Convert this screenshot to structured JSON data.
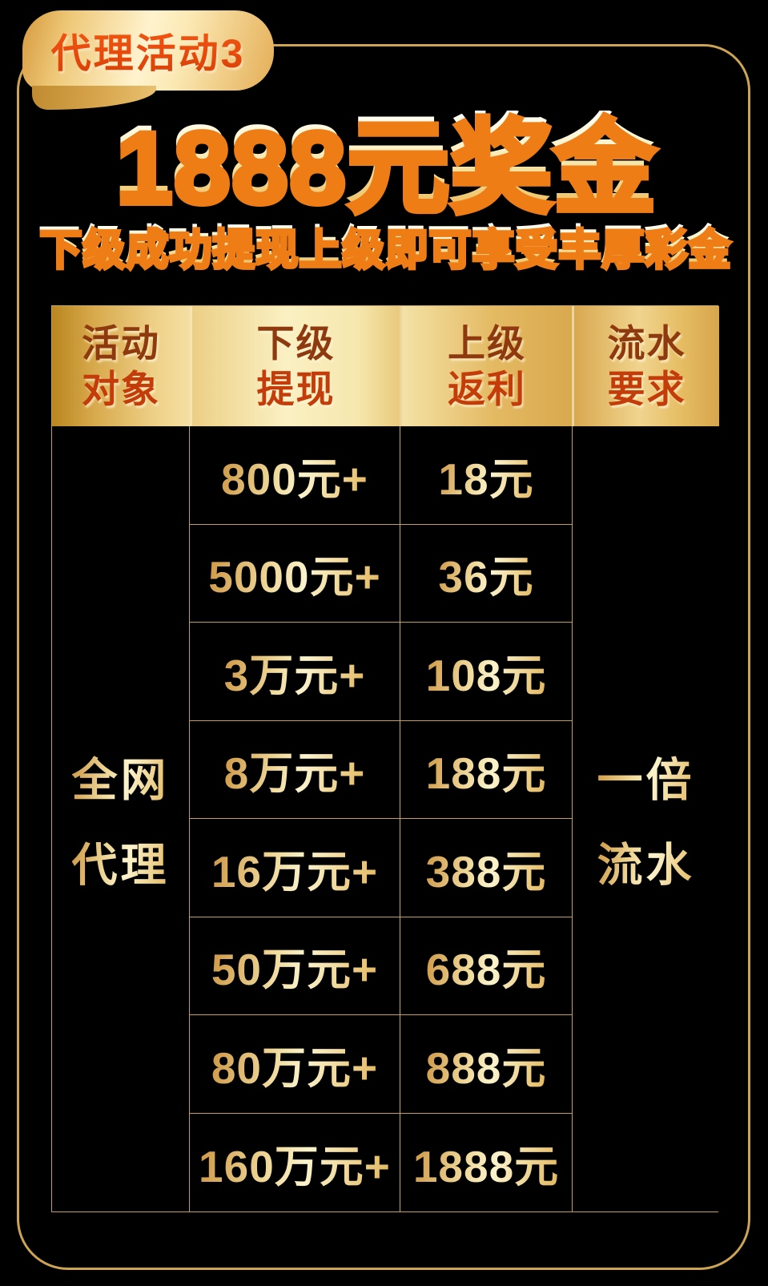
{
  "badge": {
    "label": "代理活动3"
  },
  "hero": {
    "title": "1888元奖金",
    "subtitle": "下级成功提现上级即可享受丰厚彩金"
  },
  "table": {
    "headers": [
      {
        "line1": "活动",
        "line2": "对象"
      },
      {
        "line1": "下级",
        "line2": "提现"
      },
      {
        "line1": "上级",
        "line2": "返利"
      },
      {
        "line1": "流水",
        "line2": "要求"
      }
    ],
    "left_span": {
      "line1": "全网",
      "line2": "代理"
    },
    "right_span": {
      "line1": "一倍",
      "line2": "流水"
    },
    "rows": [
      {
        "withdraw": "800元+",
        "rebate": "18元"
      },
      {
        "withdraw": "5000元+",
        "rebate": "36元"
      },
      {
        "withdraw": "3万元+",
        "rebate": "108元"
      },
      {
        "withdraw": "8万元+",
        "rebate": "188元"
      },
      {
        "withdraw": "16万元+",
        "rebate": "388元"
      },
      {
        "withdraw": "50万元+",
        "rebate": "688元"
      },
      {
        "withdraw": "80万元+",
        "rebate": "888元"
      },
      {
        "withdraw": "160万元+",
        "rebate": "1888元"
      }
    ]
  },
  "colors": {
    "background": "#000000",
    "frame_border": "#CDA452",
    "table_line": "#C49F58",
    "gold_light": "#FBF3CC",
    "gold_dark": "#CC9440",
    "header_text_dark": "#8E3A0E",
    "header_text_red": "#C33C0A",
    "badge_text": "#E84A0C",
    "title_extrusion": "#EE7D15"
  }
}
